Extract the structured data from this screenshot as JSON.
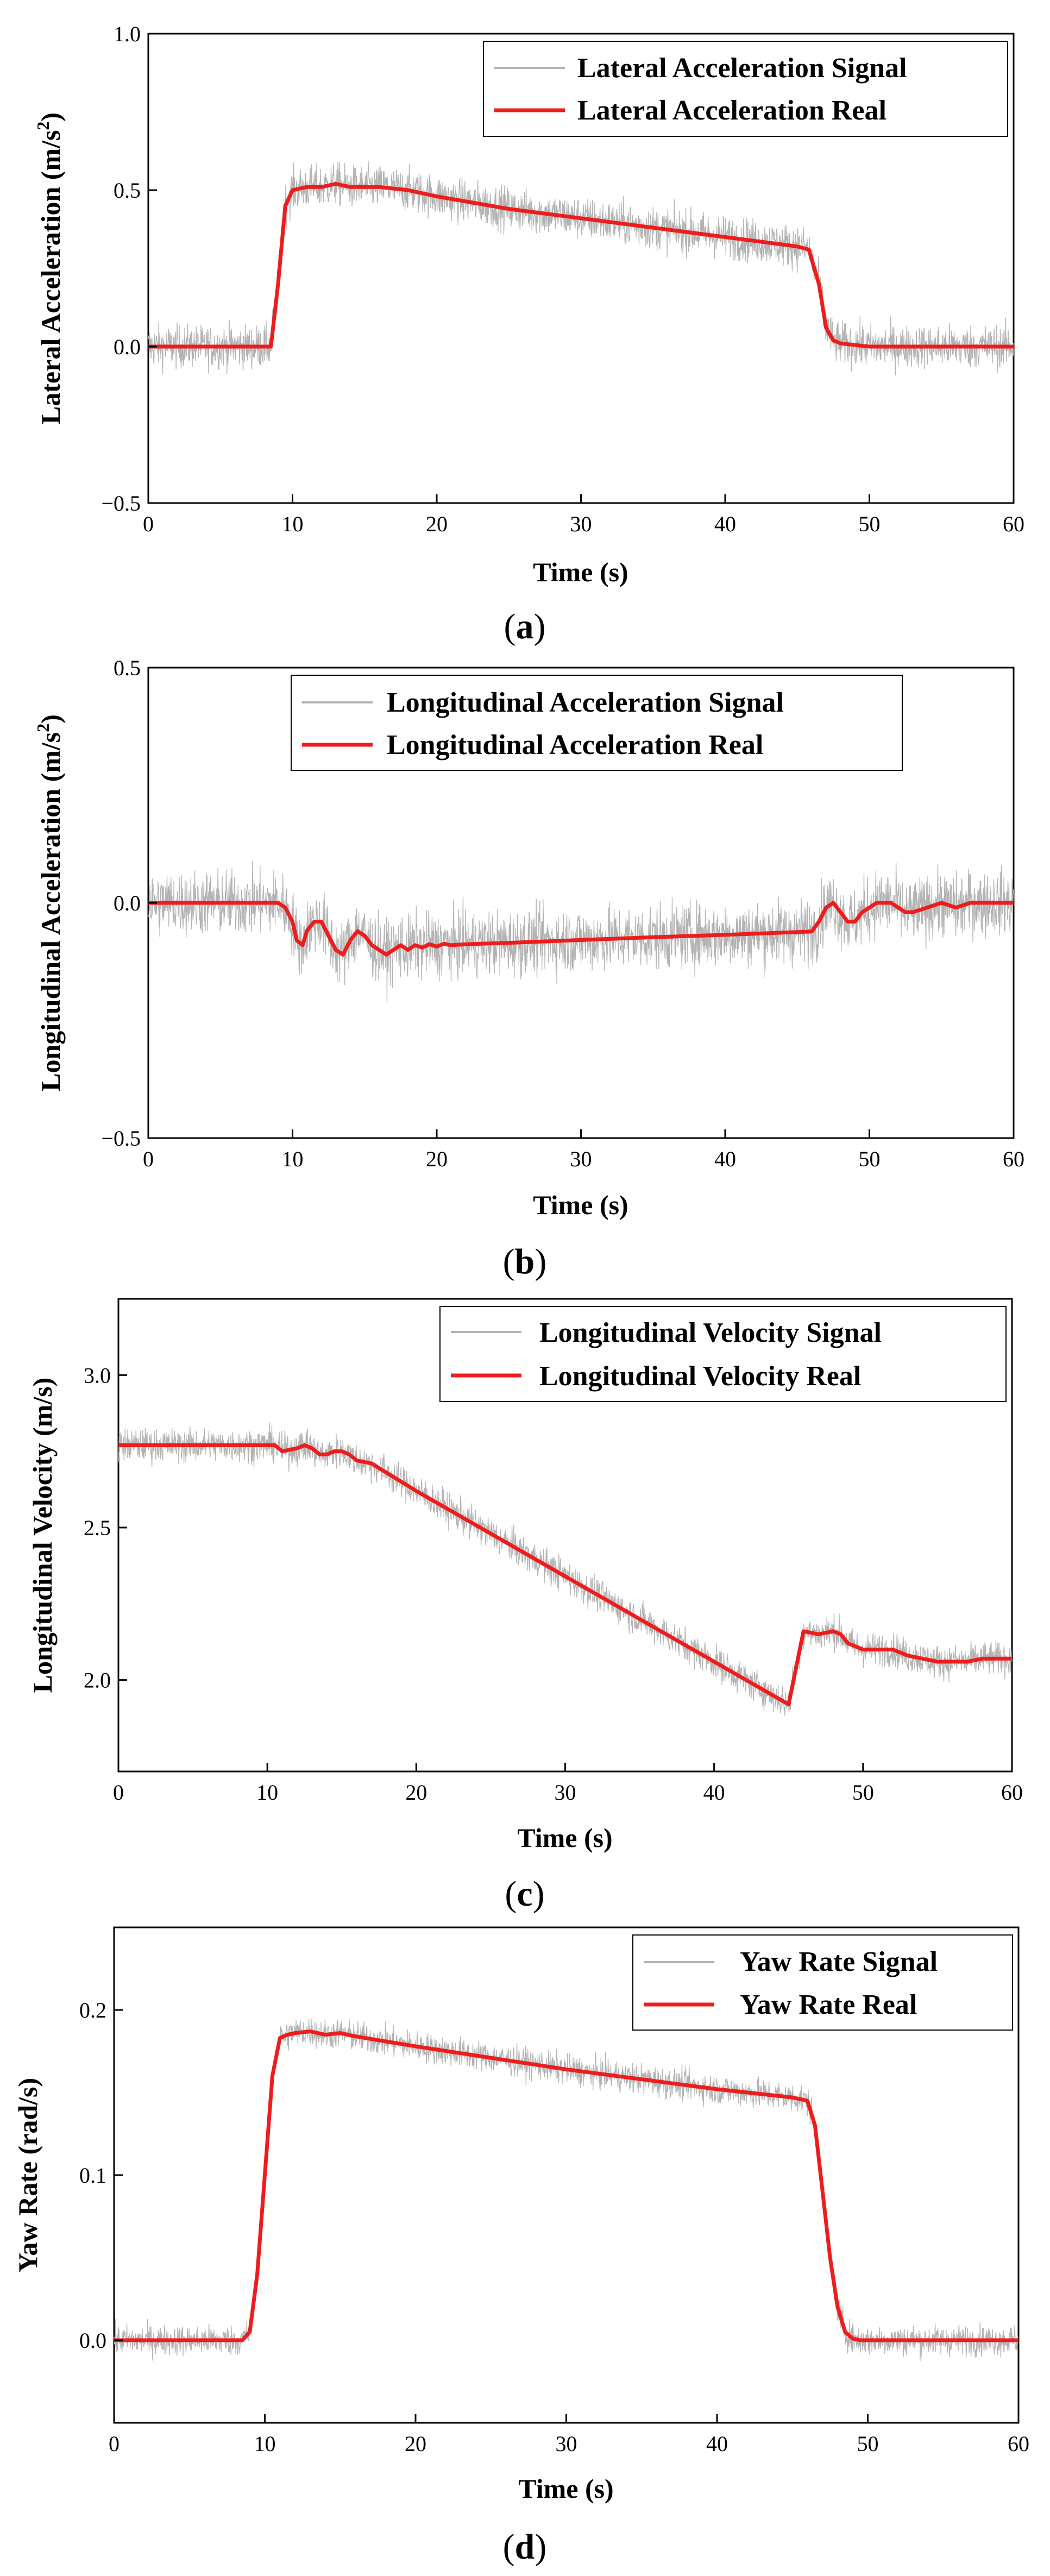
{
  "panels": [
    {
      "label_open": "(",
      "label_letter": "a",
      "label_close": ")"
    },
    {
      "label_open": "(",
      "label_letter": "b",
      "label_close": ")"
    },
    {
      "label_open": "(",
      "label_letter": "c",
      "label_close": ")"
    },
    {
      "label_open": "(",
      "label_letter": "d",
      "label_close": ")"
    }
  ],
  "chart_data": [
    {
      "type": "line",
      "xlabel": "Time (s)",
      "ylabel": "Lateral Acceleration (m/s",
      "ylabel_sup": "2",
      "ylabel_tail": ")",
      "xlim": [
        0,
        60
      ],
      "ylim": [
        -0.5,
        1.0
      ],
      "xticks": [
        "0",
        "10",
        "20",
        "30",
        "40",
        "50",
        "60"
      ],
      "yticks": [
        "−0.5",
        "0.0",
        "0.5",
        "1.0"
      ],
      "legend_position": "top-right",
      "series": [
        {
          "name": "Lateral Acceleration Signal",
          "color": "#b3b3b3",
          "noise_amplitude": 0.15
        },
        {
          "name": "Lateral Acceleration Real",
          "color": "#ee1c1c",
          "x": [
            0,
            8.5,
            9,
            9.5,
            10,
            11,
            12,
            13,
            14,
            15,
            16,
            18,
            20,
            25,
            30,
            35,
            40,
            45,
            45.8,
            46.5,
            47,
            47.5,
            48,
            50,
            55,
            60
          ],
          "y": [
            0,
            0,
            0.2,
            0.45,
            0.5,
            0.51,
            0.51,
            0.52,
            0.51,
            0.51,
            0.51,
            0.5,
            0.48,
            0.44,
            0.41,
            0.38,
            0.35,
            0.32,
            0.31,
            0.2,
            0.06,
            0.02,
            0.01,
            0,
            0,
            0
          ]
        }
      ]
    },
    {
      "type": "line",
      "xlabel": "Time (s)",
      "ylabel": "Longitudinal Acceleration (m/s",
      "ylabel_sup": "2",
      "ylabel_tail": ")",
      "xlim": [
        0,
        60
      ],
      "ylim": [
        -0.5,
        0.5
      ],
      "xticks": [
        "0",
        "10",
        "20",
        "30",
        "40",
        "50",
        "60"
      ],
      "yticks": [
        "−0.5",
        "0.0",
        "0.5"
      ],
      "legend_position": "top-right",
      "series": [
        {
          "name": "Longitudinal Acceleration Signal",
          "color": "#b3b3b3",
          "noise_amplitude": 0.15
        },
        {
          "name": "Longitudinal Acceleration Real",
          "color": "#ee1c1c",
          "x": [
            0,
            9,
            9.5,
            10,
            10.3,
            10.7,
            11,
            11.5,
            12,
            12.5,
            13,
            13.5,
            14,
            14.5,
            15,
            15.5,
            16,
            16.5,
            17,
            17.5,
            18,
            18.5,
            19,
            19.5,
            20,
            20.5,
            21,
            22,
            25,
            30,
            35,
            40,
            46,
            46.5,
            47,
            47.5,
            48,
            48.5,
            49,
            49.5,
            50,
            50.5,
            51,
            51.5,
            52,
            52.5,
            53,
            54,
            55,
            56,
            57,
            58,
            59,
            60
          ],
          "y": [
            0,
            0,
            -0.01,
            -0.04,
            -0.08,
            -0.09,
            -0.06,
            -0.04,
            -0.04,
            -0.07,
            -0.1,
            -0.11,
            -0.08,
            -0.06,
            -0.07,
            -0.09,
            -0.1,
            -0.11,
            -0.1,
            -0.09,
            -0.1,
            -0.09,
            -0.095,
            -0.088,
            -0.093,
            -0.087,
            -0.09,
            -0.088,
            -0.085,
            -0.079,
            -0.073,
            -0.068,
            -0.061,
            -0.04,
            -0.01,
            0.0,
            -0.02,
            -0.04,
            -0.04,
            -0.02,
            -0.01,
            0.0,
            0.0,
            0.0,
            -0.01,
            -0.02,
            -0.02,
            -0.01,
            0.0,
            -0.01,
            0.0,
            0.0,
            0.0,
            0.0
          ]
        }
      ]
    },
    {
      "type": "line",
      "xlabel": "Time (s)",
      "ylabel": "Longitudinal Velocity (m/s)",
      "xlim": [
        0,
        60
      ],
      "ylim": [
        1.7,
        3.25
      ],
      "xticks": [
        "0",
        "10",
        "20",
        "30",
        "40",
        "50",
        "60"
      ],
      "yticks": [
        "2.0",
        "2.5",
        "3.0"
      ],
      "ytick_values": [
        2.0,
        2.5,
        3.0
      ],
      "legend_position": "top-right",
      "series": [
        {
          "name": "Longitudinal Velocity Signal",
          "color": "#b3b3b3",
          "noise_amplitude": 0.12
        },
        {
          "name": "Longitudinal Velocity Real",
          "color": "#ee1c1c",
          "x": [
            0,
            9.5,
            10.5,
            11,
            12,
            12.5,
            13,
            13.5,
            14,
            14.5,
            15,
            15.5,
            16,
            17,
            18,
            20,
            25,
            30,
            35,
            40,
            45,
            46,
            47,
            48,
            48.5,
            49,
            50,
            51,
            52,
            53,
            54,
            55,
            56,
            57,
            58,
            59,
            60
          ],
          "y": [
            2.77,
            2.77,
            2.77,
            2.75,
            2.76,
            2.77,
            2.76,
            2.74,
            2.74,
            2.75,
            2.75,
            2.74,
            2.72,
            2.71,
            2.68,
            2.62,
            2.48,
            2.34,
            2.2,
            2.06,
            1.92,
            2.16,
            2.15,
            2.16,
            2.15,
            2.12,
            2.1,
            2.1,
            2.1,
            2.08,
            2.07,
            2.06,
            2.06,
            2.06,
            2.07,
            2.07,
            2.07
          ]
        }
      ]
    },
    {
      "type": "line",
      "xlabel": "Time (s)",
      "ylabel": "Yaw Rate (rad/s)",
      "xlim": [
        0,
        60
      ],
      "ylim": [
        -0.05,
        0.25
      ],
      "xticks": [
        "0",
        "10",
        "20",
        "30",
        "40",
        "50",
        "60"
      ],
      "yticks": [
        "0.0",
        "0.1",
        "0.2"
      ],
      "ytick_values": [
        0.0,
        0.1,
        0.2
      ],
      "legend_position": "top-right",
      "series": [
        {
          "name": "Yaw Rate Signal",
          "color": "#b3b3b3",
          "noise_amplitude": 0.02
        },
        {
          "name": "Yaw Rate Real",
          "color": "#ee1c1c",
          "x": [
            0,
            8.5,
            9,
            9.5,
            10,
            10.5,
            11,
            11.5,
            12,
            13,
            14,
            15,
            16,
            18,
            20,
            25,
            30,
            35,
            40,
            45,
            46,
            46.5,
            47,
            47.5,
            48,
            48.5,
            49,
            49.5,
            50,
            55,
            60
          ],
          "y": [
            0,
            0,
            0.005,
            0.04,
            0.1,
            0.16,
            0.183,
            0.185,
            0.186,
            0.187,
            0.185,
            0.186,
            0.184,
            0.181,
            0.178,
            0.171,
            0.164,
            0.158,
            0.152,
            0.147,
            0.145,
            0.13,
            0.09,
            0.05,
            0.02,
            0.005,
            0.001,
            0,
            0,
            0,
            0
          ]
        }
      ]
    }
  ]
}
